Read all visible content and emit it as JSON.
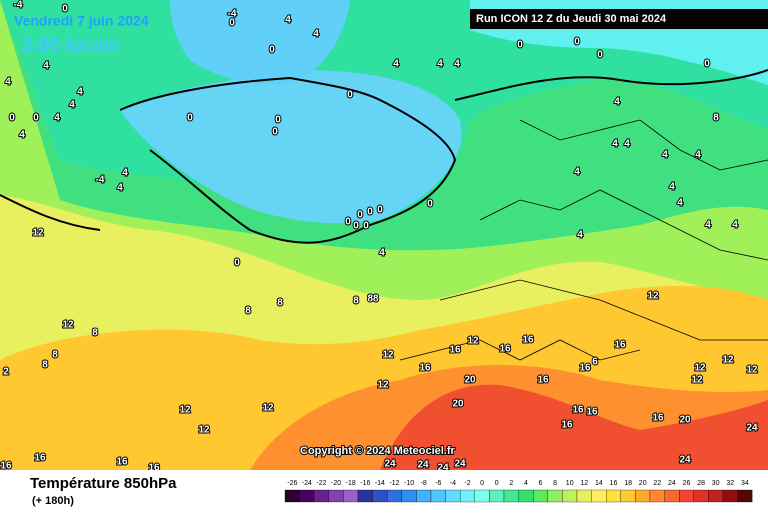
{
  "header": {
    "date": "Vendredi 7 juin 2024",
    "time": "2:00 locale",
    "run": "Run ICON 12 Z du Jeudi 30 mai 2024"
  },
  "copyright": "Copyright © 2024 Meteociel.fr",
  "footer": {
    "title": "Température 850hPa",
    "lead": "(+ 180h)"
  },
  "legend": {
    "labels": [
      -26,
      -24,
      -22,
      -20,
      -18,
      -16,
      -14,
      -12,
      -10,
      -8,
      -6,
      -4,
      -2,
      0,
      0,
      2,
      4,
      6,
      8,
      10,
      12,
      14,
      16,
      18,
      20,
      22,
      24,
      26,
      28,
      30,
      32,
      34
    ],
    "colors": [
      "#2a0030",
      "#4a0060",
      "#6a2090",
      "#8040b0",
      "#9860c8",
      "#3030a0",
      "#3050c0",
      "#3070e0",
      "#3090f0",
      "#40b0ff",
      "#50c8ff",
      "#60dcff",
      "#70f0ff",
      "#80ffe8",
      "#60f0c0",
      "#40e890",
      "#30e070",
      "#60e860",
      "#90f060",
      "#c0f060",
      "#e8f060",
      "#fff060",
      "#ffe040",
      "#ffc830",
      "#ffa830",
      "#ff8830",
      "#f86830",
      "#f04830",
      "#e03028",
      "#c02020",
      "#901010",
      "#500808"
    ]
  },
  "map_labels": [
    "-4",
    "0",
    "-4",
    "0",
    "4",
    "4",
    "0",
    "4",
    "4",
    "4",
    "4",
    "0",
    "0",
    "4",
    "4",
    "0",
    "0",
    "0",
    "0",
    "4",
    "4",
    "4",
    "-4",
    "4",
    "4",
    "0",
    "0",
    "0",
    "0",
    "4",
    "8",
    "4",
    "4",
    "4",
    "4",
    "4",
    "4",
    "4",
    "4",
    "4",
    "4",
    "0",
    "0",
    "0",
    "0",
    "0",
    "0",
    "0",
    "0",
    "4",
    "12",
    "8",
    "8",
    "8",
    "88",
    "12",
    "12",
    "8",
    "8",
    "8",
    "2",
    "12",
    "16",
    "12",
    "16",
    "16",
    "16",
    "16",
    "20",
    "16",
    "16",
    "6",
    "12",
    "12",
    "12",
    "12",
    "12",
    "20",
    "16",
    "16",
    "16",
    "16",
    "20",
    "12",
    "12",
    "12",
    "16",
    "16",
    "16",
    "16",
    "24",
    "24",
    "24",
    "24",
    "24",
    "24"
  ]
}
